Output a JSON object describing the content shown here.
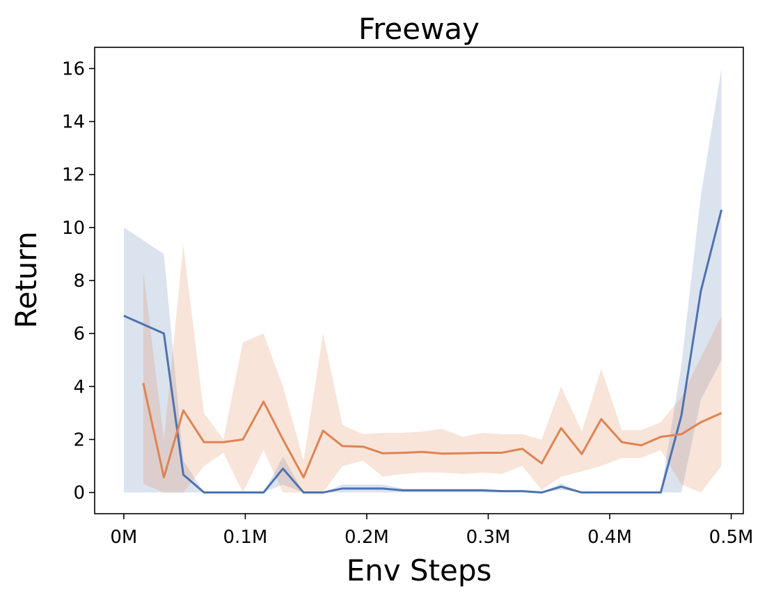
{
  "chart_data": {
    "type": "line",
    "title": "Freeway",
    "xlabel": "Env Steps",
    "ylabel": "Return",
    "xlim": [
      -0.024,
      0.51
    ],
    "ylim": [
      -0.8,
      16.8
    ],
    "x_ticks": [
      {
        "value": 0.0,
        "label": "0M"
      },
      {
        "value": 0.1,
        "label": "0.1M"
      },
      {
        "value": 0.2,
        "label": "0.2M"
      },
      {
        "value": 0.3,
        "label": "0.3M"
      },
      {
        "value": 0.4,
        "label": "0.4M"
      },
      {
        "value": 0.5,
        "label": "0.5M"
      }
    ],
    "y_ticks": [
      {
        "value": 0,
        "label": "0"
      },
      {
        "value": 2,
        "label": "2"
      },
      {
        "value": 4,
        "label": "4"
      },
      {
        "value": 6,
        "label": "6"
      },
      {
        "value": 8,
        "label": "8"
      },
      {
        "value": 10,
        "label": "10"
      },
      {
        "value": 12,
        "label": "12"
      },
      {
        "value": 14,
        "label": "14"
      },
      {
        "value": 16,
        "label": "16"
      }
    ],
    "grid": false,
    "series": [
      {
        "color": "#4c72b0",
        "band_color": "#4c72b0",
        "band_opacity": 0.2,
        "x": [
          0.0,
          0.033,
          0.049,
          0.066,
          0.082,
          0.098,
          0.115,
          0.131,
          0.148,
          0.164,
          0.18,
          0.197,
          0.213,
          0.23,
          0.246,
          0.262,
          0.279,
          0.295,
          0.311,
          0.328,
          0.344,
          0.36,
          0.377,
          0.393,
          0.41,
          0.426,
          0.442,
          0.459,
          0.475,
          0.492
        ],
        "y": [
          6.67,
          6.0,
          0.67,
          0.0,
          0.0,
          0.0,
          0.0,
          0.9,
          0.0,
          0.0,
          0.15,
          0.15,
          0.15,
          0.08,
          0.08,
          0.08,
          0.08,
          0.08,
          0.05,
          0.05,
          0.0,
          0.22,
          0.0,
          0.0,
          0.0,
          0.0,
          0.0,
          2.9,
          7.6,
          10.67
        ],
        "lower": [
          0.0,
          0.0,
          0.0,
          0.0,
          0.0,
          0.0,
          0.0,
          0.3,
          0.0,
          0.0,
          0.0,
          0.0,
          0.0,
          0.0,
          0.0,
          0.0,
          0.0,
          0.0,
          0.0,
          0.0,
          0.0,
          0.1,
          0.0,
          0.0,
          0.0,
          0.0,
          0.0,
          0.0,
          3.5,
          5.0
        ],
        "upper": [
          10.0,
          9.0,
          1.2,
          0.0,
          0.0,
          0.0,
          0.0,
          1.35,
          0.0,
          0.0,
          0.3,
          0.3,
          0.3,
          0.15,
          0.15,
          0.15,
          0.15,
          0.15,
          0.1,
          0.1,
          0.0,
          0.35,
          0.0,
          0.0,
          0.0,
          0.0,
          0.0,
          4.8,
          11.2,
          16.0
        ]
      },
      {
        "color": "#dd8452",
        "band_color": "#dd8452",
        "band_opacity": 0.22,
        "x": [
          0.016,
          0.033,
          0.049,
          0.066,
          0.082,
          0.098,
          0.115,
          0.131,
          0.148,
          0.164,
          0.18,
          0.197,
          0.213,
          0.23,
          0.246,
          0.262,
          0.279,
          0.295,
          0.311,
          0.328,
          0.344,
          0.36,
          0.377,
          0.393,
          0.41,
          0.426,
          0.442,
          0.459,
          0.475,
          0.492
        ],
        "y": [
          4.13,
          0.57,
          3.1,
          1.9,
          1.9,
          2.0,
          3.43,
          2.0,
          0.57,
          2.33,
          1.75,
          1.73,
          1.48,
          1.5,
          1.53,
          1.47,
          1.48,
          1.5,
          1.5,
          1.65,
          1.1,
          2.43,
          1.45,
          2.77,
          1.9,
          1.78,
          2.1,
          2.2,
          2.65,
          3.0
        ],
        "lower": [
          0.33,
          0.0,
          0.0,
          1.0,
          1.5,
          0.0,
          1.6,
          0.0,
          0.0,
          0.0,
          1.0,
          1.2,
          0.6,
          0.7,
          0.75,
          0.75,
          0.7,
          0.75,
          0.7,
          1.0,
          0.1,
          0.6,
          0.8,
          1.0,
          1.3,
          1.3,
          1.6,
          0.3,
          0.0,
          1.0
        ],
        "upper": [
          8.37,
          2.0,
          9.33,
          3.0,
          2.0,
          5.67,
          6.0,
          4.0,
          1.2,
          6.0,
          2.55,
          2.2,
          2.25,
          2.25,
          2.3,
          2.4,
          2.1,
          2.25,
          2.2,
          2.2,
          2.0,
          4.0,
          2.3,
          4.67,
          2.35,
          2.35,
          2.65,
          3.6,
          5.1,
          6.67
        ]
      }
    ]
  }
}
